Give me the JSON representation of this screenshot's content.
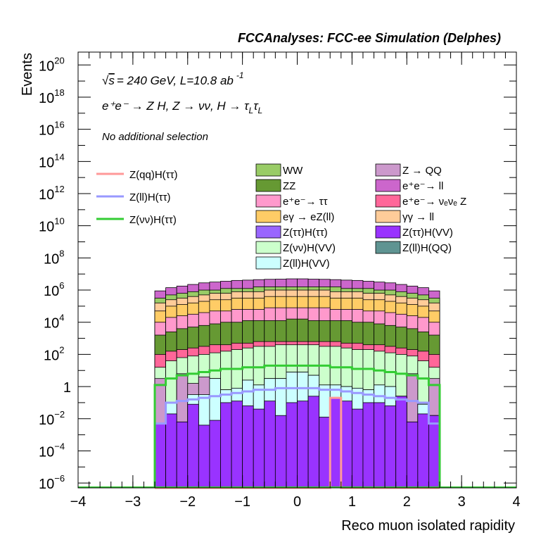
{
  "chart_data": {
    "type": "stacked-histogram",
    "title": "FCCAnalyses: FCC-ee Simulation (Delphes)",
    "xlabel": "Reco muon isolated rapidity",
    "ylabel": "Events",
    "xlim": [
      -4,
      4
    ],
    "ylim_log10": [
      -6.3,
      20.8
    ],
    "yscale": "log",
    "x_ticks": [
      {
        "v": -4,
        "label": "−4"
      },
      {
        "v": -3,
        "label": "−3"
      },
      {
        "v": -2,
        "label": "−2"
      },
      {
        "v": -1,
        "label": "−1"
      },
      {
        "v": 0,
        "label": "0"
      },
      {
        "v": 1,
        "label": "1"
      },
      {
        "v": 2,
        "label": "2"
      },
      {
        "v": 3,
        "label": "3"
      },
      {
        "v": 4,
        "label": "4"
      }
    ],
    "y_ticks": [
      {
        "e": 20,
        "base": "10",
        "exp": "20"
      },
      {
        "e": 18,
        "base": "10",
        "exp": "18"
      },
      {
        "e": 16,
        "base": "10",
        "exp": "16"
      },
      {
        "e": 14,
        "base": "10",
        "exp": "14"
      },
      {
        "e": 12,
        "base": "10",
        "exp": "12"
      },
      {
        "e": 10,
        "base": "10",
        "exp": "10"
      },
      {
        "e": 8,
        "base": "10",
        "exp": "8"
      },
      {
        "e": 6,
        "base": "10",
        "exp": "6"
      },
      {
        "e": 4,
        "base": "10",
        "exp": "4"
      },
      {
        "e": 2,
        "base": "10",
        "exp": "2"
      },
      {
        "e": 0,
        "base": "1",
        "exp": ""
      },
      {
        "e": -2,
        "base": "10",
        "exp": "−2"
      },
      {
        "e": -4,
        "base": "10",
        "exp": "−4"
      },
      {
        "e": -6,
        "base": "10",
        "exp": "−6"
      }
    ],
    "bins": {
      "centers": [
        -2.5,
        -2.3,
        -2.1,
        -1.9,
        -1.7,
        -1.5,
        -1.3,
        -1.1,
        -0.9,
        -0.7,
        -0.5,
        -0.3,
        -0.1,
        0.1,
        0.3,
        0.5,
        0.7,
        0.9,
        1.1,
        1.3,
        1.5,
        1.7,
        1.9,
        2.1,
        2.3,
        2.5
      ],
      "width": 0.2
    },
    "annotations": {
      "energy_text": "= 240 GeV, L=10.8 ab",
      "energy_sqrt": "√",
      "energy_s": "s",
      "energy_exp": "-1",
      "process_text": "e⁺e⁻ → Z H, Z → νν, H → τ",
      "process_sub": "L",
      "selection": "No additional selection"
    },
    "stack": [
      {
        "name": "Z(ττ)H(VV)",
        "color": "#9933ff",
        "top_log10": [
          -2.3,
          -1.7,
          -2.2,
          -1.1,
          -2.4,
          -2.1,
          -1.0,
          -0.9,
          -1.2,
          -1.4,
          -0.9,
          -1.8,
          -1.0,
          -0.9,
          -0.6,
          -1.9,
          -0.7,
          -0.9,
          -1.4,
          -1.0,
          -1.0,
          -1.2,
          -0.6,
          -2.2,
          -1.7,
          -1.8
        ]
      },
      {
        "name": "Z(ll)H(QQ)",
        "color": "#5f9492",
        "top_log10": [
          -6.3,
          -6.3,
          -5.1,
          -6.3,
          -6.3,
          -6.3,
          -6.3,
          -5.3,
          -5.3,
          -6.3,
          -6.3,
          -6.3,
          -2.3,
          -6.3,
          -2.8,
          -6.3,
          -6.3,
          -6.3,
          -6.3,
          -6.3,
          -6.3,
          -6.3,
          -6.3,
          -6.3,
          -6.3,
          -6.3
        ]
      },
      {
        "name": "Z(ll)H(VV)",
        "color": "#ccffff",
        "top_log10": [
          -2.3,
          -1.0,
          -2.2,
          -0.5,
          -0.5,
          0.5,
          -0.2,
          -0.1,
          0.4,
          0.1,
          0.5,
          0.5,
          0.9,
          0.9,
          0.7,
          0.1,
          0.1,
          0.0,
          -0.1,
          -0.2,
          0.1,
          0.0,
          -0.6,
          -2.2,
          -1.1,
          -1.8
        ]
      },
      {
        "name": "Z → QQ",
        "color": "#cc99cc",
        "top_log10": [
          0.5,
          -1.0,
          0.8,
          0.2,
          0.6,
          0.5,
          -0.2,
          -0.1,
          0.4,
          0.1,
          0.5,
          0.5,
          0.9,
          0.9,
          0.7,
          0.1,
          0.1,
          0.0,
          -0.1,
          -0.2,
          0.1,
          0.0,
          -0.6,
          0.8,
          -1.1,
          0.5
        ]
      },
      {
        "name": "Z(νν)H(VV)",
        "color": "#ccffcc",
        "top_log10": [
          1.2,
          1.6,
          1.8,
          1.9,
          2.0,
          2.1,
          2.2,
          2.3,
          2.4,
          2.5,
          2.5,
          2.6,
          2.6,
          2.6,
          2.6,
          2.5,
          2.5,
          2.4,
          2.3,
          2.3,
          2.2,
          2.1,
          2.0,
          1.9,
          1.6,
          1.2
        ]
      },
      {
        "name": "e⁺e⁻→ νₑνₑ Z",
        "color": "#ff6699",
        "top_log10": [
          2.0,
          2.2,
          2.3,
          2.4,
          2.5,
          2.6,
          2.6,
          2.7,
          2.7,
          2.8,
          2.8,
          2.8,
          2.8,
          2.8,
          2.8,
          2.8,
          2.8,
          2.7,
          2.7,
          2.6,
          2.6,
          2.5,
          2.4,
          2.3,
          2.2,
          2.0
        ]
      },
      {
        "name": "ZZ",
        "color": "#669933",
        "top_log10": [
          3.2,
          3.4,
          3.6,
          3.7,
          3.8,
          3.9,
          4.0,
          4.0,
          4.1,
          4.1,
          4.1,
          4.1,
          4.2,
          4.2,
          4.1,
          4.1,
          4.1,
          4.1,
          4.0,
          4.0,
          3.9,
          3.8,
          3.7,
          3.6,
          3.4,
          3.2
        ]
      },
      {
        "name": "e⁺e⁻→ ττ",
        "color": "#ff99cc",
        "top_log10": [
          4.0,
          4.3,
          4.4,
          4.5,
          4.6,
          4.7,
          4.7,
          4.8,
          4.8,
          4.8,
          4.9,
          4.9,
          4.9,
          4.9,
          4.9,
          4.9,
          4.8,
          4.8,
          4.8,
          4.7,
          4.7,
          4.6,
          4.5,
          4.4,
          4.3,
          4.0
        ]
      },
      {
        "name": "eγ → eZ(ll)",
        "color": "#ffcc66",
        "top_log10": [
          4.7,
          5.0,
          5.1,
          5.2,
          5.3,
          5.4,
          5.4,
          5.5,
          5.5,
          5.5,
          5.6,
          5.6,
          5.6,
          5.6,
          5.6,
          5.6,
          5.5,
          5.5,
          5.5,
          5.4,
          5.4,
          5.3,
          5.2,
          5.1,
          5.0,
          4.7
        ]
      },
      {
        "name": "γγ → ll",
        "color": "#ffcc99",
        "top_log10": [
          5.2,
          5.4,
          5.5,
          5.6,
          5.7,
          5.8,
          5.8,
          5.9,
          5.9,
          5.9,
          6.0,
          6.0,
          6.0,
          6.0,
          6.0,
          6.0,
          5.9,
          5.9,
          5.9,
          5.8,
          5.8,
          5.7,
          5.6,
          5.5,
          5.4,
          5.2
        ]
      },
      {
        "name": "WW",
        "color": "#99cc66",
        "top_log10": [
          5.5,
          5.7,
          5.8,
          5.9,
          6.0,
          6.0,
          6.1,
          6.1,
          6.1,
          6.2,
          6.2,
          6.2,
          6.2,
          6.2,
          6.2,
          6.2,
          6.2,
          6.1,
          6.1,
          6.1,
          6.0,
          6.0,
          5.9,
          5.8,
          5.7,
          5.5
        ]
      },
      {
        "name": "e⁺e⁻→ ll",
        "color": "#cc66cc",
        "top_log10": [
          5.95,
          6.15,
          6.25,
          6.35,
          6.45,
          6.5,
          6.55,
          6.6,
          6.62,
          6.65,
          6.67,
          6.68,
          6.7,
          6.7,
          6.68,
          6.67,
          6.65,
          6.62,
          6.6,
          6.55,
          6.5,
          6.45,
          6.35,
          6.25,
          6.15,
          5.95
        ]
      },
      {
        "name": "Z(ττ)H(ττ)",
        "color": "#9966ff",
        "legend_only": true
      }
    ],
    "lines": [
      {
        "name": "Z(qq)H(ττ)",
        "color": "#ff9999",
        "values_log10": [
          -6.3,
          -6.3,
          -6.3,
          -6.3,
          -6.3,
          -6.3,
          -6.3,
          -6.3,
          -6.3,
          -6.3,
          -6.3,
          -6.3,
          -6.3,
          -6.3,
          -6.3,
          -6.3,
          -0.7,
          -6.3,
          -6.3,
          -6.3,
          -6.3,
          -6.3,
          -6.3,
          -6.3,
          -6.3,
          -6.3
        ]
      },
      {
        "name": "Z(ll)H(ττ)",
        "color": "#9999ff",
        "values_log10": [
          -2.3,
          -1.0,
          -0.9,
          -0.8,
          -0.7,
          -0.6,
          -0.5,
          -0.4,
          -0.3,
          -0.2,
          -0.2,
          -0.1,
          -0.1,
          -0.1,
          -0.1,
          -0.2,
          -0.2,
          -0.3,
          -0.4,
          -0.5,
          -0.6,
          -0.7,
          -0.8,
          -0.9,
          -1.0,
          -2.3
        ]
      },
      {
        "name": "Z(νν)H(ττ)",
        "color": "#33cc33",
        "values_log10": [
          0.1,
          0.5,
          0.7,
          0.8,
          0.9,
          1.0,
          1.1,
          1.1,
          1.2,
          1.2,
          1.3,
          1.3,
          1.3,
          1.3,
          1.3,
          1.3,
          1.2,
          1.2,
          1.1,
          1.1,
          1.0,
          0.9,
          0.8,
          0.7,
          0.5,
          0.1
        ]
      }
    ],
    "legend_lines_order": [
      "Z(qq)H(ττ)",
      "Z(ll)H(ττ)",
      "Z(νν)H(ττ)"
    ],
    "legend_col1": [
      {
        "label": "WW",
        "color": "#99cc66"
      },
      {
        "label": "ZZ",
        "color": "#669933"
      },
      {
        "label": "e⁺e⁻→ ττ",
        "color": "#ff99cc"
      },
      {
        "label": "eγ → eZ(ll)",
        "color": "#ffcc66"
      },
      {
        "label": "Z(ττ)H(ττ)",
        "color": "#9966ff"
      },
      {
        "label": "Z(νν)H(VV)",
        "color": "#ccffcc"
      },
      {
        "label": "Z(ll)H(VV)",
        "color": "#ccffff"
      }
    ],
    "legend_col2": [
      {
        "label": "Z → QQ",
        "color": "#cc99cc"
      },
      {
        "label": "e⁺e⁻→ ll",
        "color": "#cc66cc"
      },
      {
        "label": "e⁺e⁻→ νₑνₑ Z",
        "color": "#ff6699"
      },
      {
        "label": "γγ → ll",
        "color": "#ffcc99"
      },
      {
        "label": "Z(ττ)H(VV)",
        "color": "#9933ff"
      },
      {
        "label": "Z(ll)H(QQ)",
        "color": "#5f9492"
      }
    ]
  }
}
